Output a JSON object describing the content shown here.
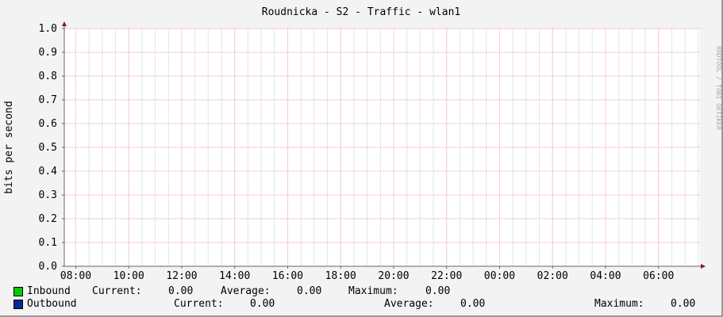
{
  "chart_data": {
    "type": "line",
    "title": "Roudnicka - S2 - Traffic - wlan1",
    "ylabel": "bits per second",
    "xlabel": "",
    "ylim": [
      0,
      1.0
    ],
    "yticks": [
      "0.0",
      "0.1",
      "0.2",
      "0.3",
      "0.4",
      "0.5",
      "0.6",
      "0.7",
      "0.8",
      "0.9",
      "1.0"
    ],
    "xticks": [
      "08:00",
      "10:00",
      "12:00",
      "14:00",
      "16:00",
      "18:00",
      "20:00",
      "22:00",
      "00:00",
      "02:00",
      "04:00",
      "06:00"
    ],
    "grid": true,
    "series": [
      {
        "name": "Inbound",
        "color": "#00cc00",
        "values": [],
        "current": "0.00",
        "average": "0.00",
        "maximum": "0.00"
      },
      {
        "name": "Outbound",
        "color": "#002a97",
        "values": [],
        "current": "0.00",
        "average": "0.00",
        "maximum": "0.00"
      }
    ],
    "legend_labels": {
      "current": "Current:",
      "average": "Average:",
      "maximum": "Maximum:"
    },
    "watermark": "RRDTOOL / TOBI OETIKER",
    "major_grid_color": "#f0a0a0",
    "minor_grid_color": "#cccccc"
  }
}
